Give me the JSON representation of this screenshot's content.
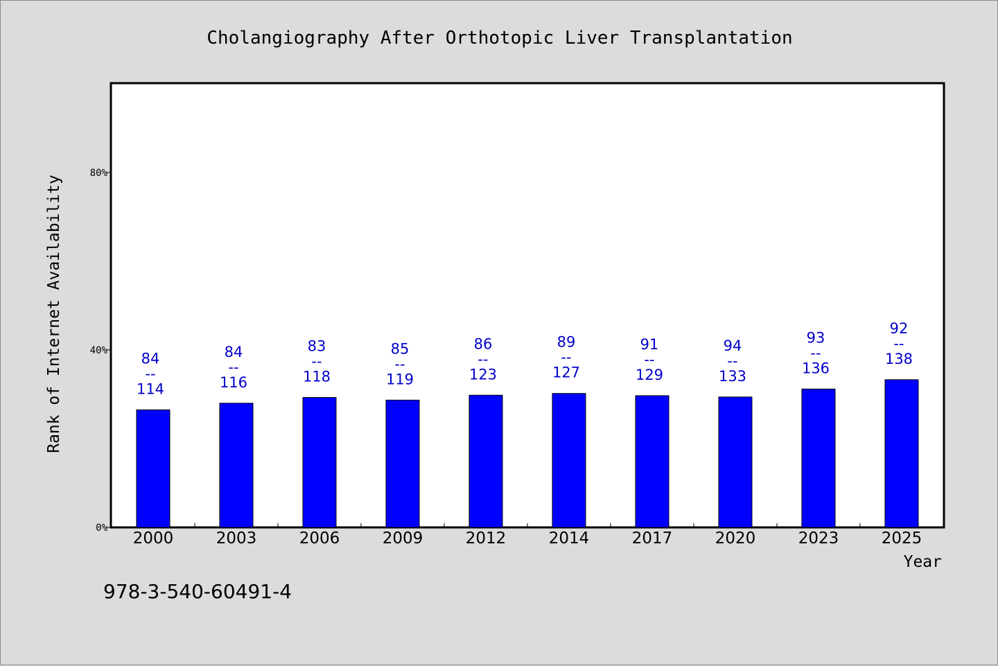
{
  "chart_data": {
    "type": "bar",
    "title": "Cholangiography After Orthotopic Liver Transplantation",
    "xlabel": "Year",
    "ylabel": "Rank of Internet Availability",
    "ylim": [
      0,
      100
    ],
    "yticks": [
      {
        "value": 0,
        "label": "0%"
      },
      {
        "value": 40,
        "label": "40%"
      },
      {
        "value": 80,
        "label": "80%"
      }
    ],
    "categories": [
      "2000",
      "2003",
      "2006",
      "2009",
      "2012",
      "2014",
      "2017",
      "2020",
      "2023",
      "2025"
    ],
    "values": [
      26.5,
      28.0,
      29.3,
      28.7,
      29.8,
      30.2,
      29.7,
      29.4,
      31.2,
      33.3
    ],
    "labels": [
      {
        "top": "84",
        "sep": "--",
        "bottom": "114"
      },
      {
        "top": "84",
        "sep": "--",
        "bottom": "116"
      },
      {
        "top": "83",
        "sep": "--",
        "bottom": "118"
      },
      {
        "top": "85",
        "sep": "--",
        "bottom": "119"
      },
      {
        "top": "86",
        "sep": "--",
        "bottom": "123"
      },
      {
        "top": "89",
        "sep": "--",
        "bottom": "127"
      },
      {
        "top": "91",
        "sep": "--",
        "bottom": "129"
      },
      {
        "top": "94",
        "sep": "--",
        "bottom": "133"
      },
      {
        "top": "93",
        "sep": "--",
        "bottom": "136"
      },
      {
        "top": "92",
        "sep": "--",
        "bottom": "138"
      }
    ],
    "bar_color": "#0000ff",
    "label_color": "#0000cc",
    "grid": false
  },
  "footer": {
    "isbn": "978-3-540-60491-4"
  }
}
